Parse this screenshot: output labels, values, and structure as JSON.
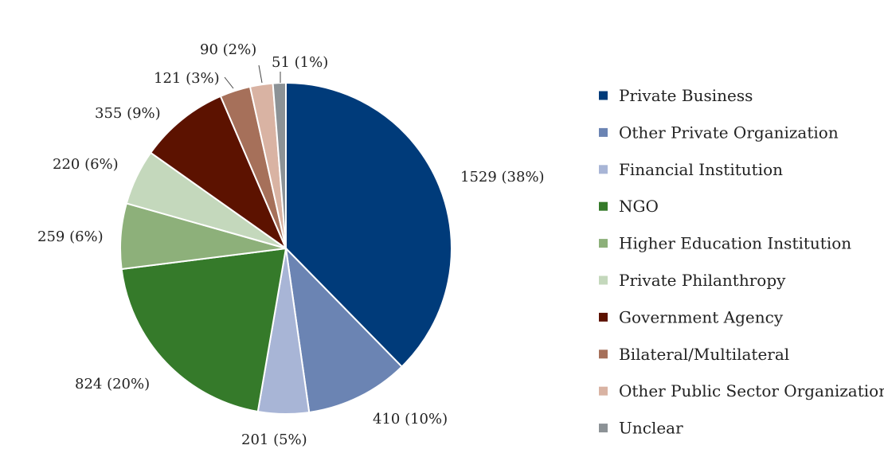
{
  "chart_data": {
    "type": "pie",
    "title": "",
    "start_angle_deg": 0,
    "direction": "clockwise",
    "legend_position": "right",
    "slices": [
      {
        "name": "Private Business",
        "value": 1529,
        "label": "1529 (38%)",
        "color": "#003b7a"
      },
      {
        "name": "Other Private Organization",
        "value": 410,
        "label": "410 (10%)",
        "color": "#6b84b3"
      },
      {
        "name": "Financial Institution",
        "value": 201,
        "label": "201 (5%)",
        "color": "#a8b5d6"
      },
      {
        "name": "NGO",
        "value": 824,
        "label": "824 (20%)",
        "color": "#357a2a"
      },
      {
        "name": "Higher Education Institution",
        "value": 259,
        "label": "259 (6%)",
        "color": "#8db07a"
      },
      {
        "name": "Private Philanthropy",
        "value": 220,
        "label": "220 (6%)",
        "color": "#c4d8bc"
      },
      {
        "name": "Government Agency",
        "value": 355,
        "label": "355 (9%)",
        "color": "#5c1200"
      },
      {
        "name": "Bilateral/Multilateral",
        "value": 121,
        "label": "121 (3%)",
        "color": "#a6705a"
      },
      {
        "name": "Other Public Sector Organization",
        "value": 90,
        "label": "90 (2%)",
        "color": "#d9b3a3"
      },
      {
        "name": "Unclear",
        "value": 51,
        "label": "51 (1%)",
        "color": "#8c9296"
      }
    ]
  }
}
